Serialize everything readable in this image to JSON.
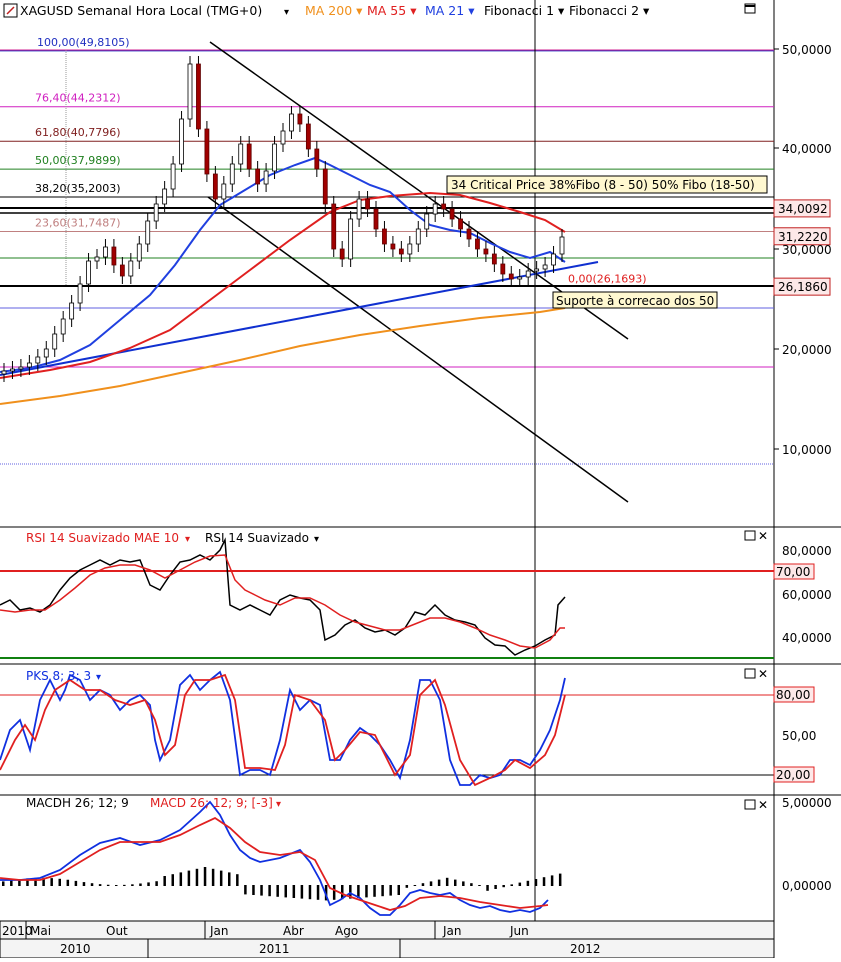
{
  "main": {
    "title": "XAGUSD Semanal Hora Local (TMG+0)",
    "indicators": [
      {
        "label": "MA 200",
        "color": "#f0901c"
      },
      {
        "label": "MA 55",
        "color": "#e02020"
      },
      {
        "label": "MA 21",
        "color": "#2040e0"
      },
      {
        "label": "Fibonacci 1",
        "color": "#000000"
      },
      {
        "label": "Fibonacci 2",
        "color": "#000000"
      }
    ],
    "y_ticks": [
      "50,0000",
      "40,0000",
      "30,0000",
      "20,0000",
      "10,0000"
    ],
    "fib_levels": [
      {
        "label": "100,00(49,8105)",
        "value": 49.8105,
        "color": "#2030c0"
      },
      {
        "label": "76,40(44,2312)",
        "value": 44.2312,
        "color": "#d020c0"
      },
      {
        "label": "61,80(40,7796)",
        "value": 40.7796,
        "color": "#802020"
      },
      {
        "label": "50,00(37,9899)",
        "value": 37.9899,
        "color": "#208020"
      },
      {
        "label": "38,20(35,2003)",
        "value": 35.2003,
        "color": "#000000"
      },
      {
        "label": "23,60(31,7487)",
        "value": 31.7487,
        "color": "#c08080"
      },
      {
        "label": "0,00(26,1693)",
        "value": 26.1693,
        "color": "#e02020"
      }
    ],
    "price_tags": [
      {
        "label": "34,0092",
        "value": 34.0092
      },
      {
        "label": "31,2220",
        "value": 31.222
      },
      {
        "label": "26,1860",
        "value": 26.186
      }
    ],
    "annotations": [
      "34  Critical Price   38%Fibo (8 - 50) 50% Fibo (18-50)",
      "Suporte à correcao dos 50"
    ]
  },
  "rsi": {
    "labels": [
      {
        "text": "RSI 14 Suavizado MAE 10",
        "color": "#e02020"
      },
      {
        "text": "RSI 14 Suavizado",
        "color": "#000000"
      }
    ],
    "y_ticks": [
      "80,0000",
      "60,0000",
      "40,0000"
    ],
    "level_tag": "70,00"
  },
  "pks": {
    "label": "PKS 8; 3; 3",
    "y_tick": "50,00",
    "level_tags": [
      "80,00",
      "20,00"
    ]
  },
  "macd": {
    "labels": [
      {
        "text": "MACDH 26; 12; 9",
        "color": "#000000"
      },
      {
        "text": "MACD 26; 12; 9; [-3]",
        "color": "#e02020"
      }
    ],
    "y_ticks": [
      "5,00000",
      "0,00000"
    ]
  },
  "x_axis": {
    "months": [
      "2010",
      "Mai",
      "Out",
      "Jan",
      "Abr",
      "Ago",
      "Jan",
      "Jun"
    ],
    "years": [
      "2010",
      "2011",
      "2012"
    ]
  },
  "chart_data": {
    "type": "candlestick",
    "title": "XAGUSD Semanal Hora Local (TMG+0)",
    "ylim": [
      0,
      52
    ],
    "weekly_close_approx": [
      17.8,
      18.0,
      18.2,
      18.6,
      19.2,
      20.0,
      21.5,
      23.0,
      24.6,
      26.5,
      28.8,
      29.2,
      30.2,
      28.4,
      27.3,
      28.8,
      30.5,
      32.8,
      34.5,
      36.0,
      38.5,
      43.0,
      48.5,
      42.0,
      37.5,
      35.0,
      36.5,
      38.5,
      40.5,
      38.0,
      36.5,
      37.8,
      40.5,
      41.8,
      43.5,
      42.5,
      40.0,
      38.0,
      34.5,
      30.0,
      29.0,
      33.0,
      35.0,
      34.0,
      32.0,
      30.5,
      30.0,
      29.5,
      30.5,
      32.0,
      33.5,
      34.5,
      34.0,
      33.0,
      32.0,
      31.0,
      30.0,
      29.5,
      28.5,
      27.5,
      27.0,
      27.2,
      27.8,
      28.0,
      28.4,
      29.5,
      31.2
    ],
    "ma200_approx": [
      14.5,
      15.5,
      17.0,
      18.5,
      20.0,
      21.5,
      22.5,
      23.2,
      24.0
    ],
    "rsi_approx": [
      55,
      53,
      60,
      72,
      80,
      78,
      75,
      80,
      82,
      84,
      78,
      55,
      48,
      52,
      58,
      50,
      40,
      35,
      42,
      38,
      42,
      45,
      38,
      35,
      32,
      30,
      35,
      42,
      45,
      58
    ],
    "pks_approx": [
      40,
      60,
      85,
      90,
      80,
      45,
      85,
      90,
      20,
      25,
      80,
      75,
      50,
      20,
      50,
      55,
      20,
      90,
      85,
      20,
      15,
      25,
      20,
      50,
      90
    ],
    "macd_approx": [
      0.5,
      0.8,
      1.5,
      2.2,
      2.5,
      2.2,
      3.0,
      4.5,
      3.5,
      1.8,
      0.5,
      1.0,
      0.5,
      -1.0,
      -1.2,
      -0.8,
      -1.5,
      -0.5,
      -0.5,
      -0.8,
      -1.0,
      -0.8,
      -0.5
    ]
  }
}
